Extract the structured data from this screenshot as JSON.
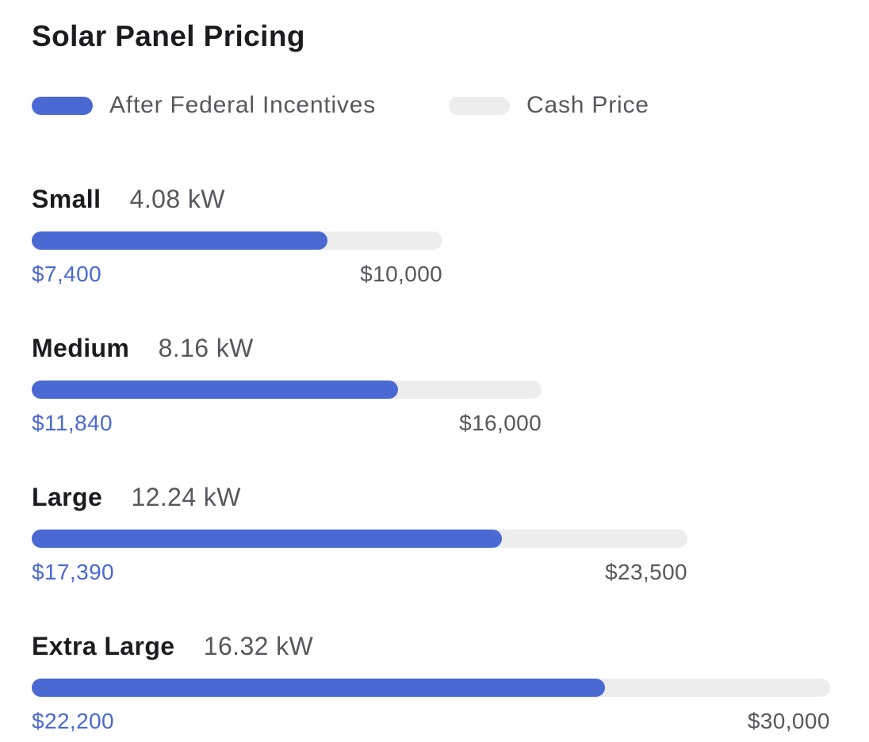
{
  "title": "Solar Panel Pricing",
  "colors": {
    "accent_blue": "#4a69d2",
    "track_gray": "#ededee",
    "heading_dark": "#1b1c20",
    "text_gray": "#56585d"
  },
  "legend": {
    "items": [
      {
        "label": "After Federal Incentives",
        "swatch": "blue"
      },
      {
        "label": "Cash Price",
        "swatch": "gray"
      }
    ]
  },
  "chart_data": {
    "type": "bar",
    "orientation": "horizontal",
    "title": "Solar Panel Pricing",
    "series": [
      "After Federal Incentives",
      "Cash Price"
    ],
    "categories": [
      "Small",
      "Medium",
      "Large",
      "Extra Large"
    ],
    "legend_position": "top",
    "grid": false,
    "rows": [
      {
        "size": "Small",
        "capacity": "4.08 kW",
        "after_incentives_value": 7400,
        "after_incentives_label": "$7,400",
        "cash_value": 10000,
        "cash_label": "$10,000",
        "track_pct": 51.0,
        "fill_pct": 72.0
      },
      {
        "size": "Medium",
        "capacity": "8.16 kW",
        "after_incentives_value": 11840,
        "after_incentives_label": "$11,840",
        "cash_value": 16000,
        "cash_label": "$16,000",
        "track_pct": 63.3,
        "fill_pct": 71.9
      },
      {
        "size": "Large",
        "capacity": "12.24 kW",
        "after_incentives_value": 17390,
        "after_incentives_label": "$17,390",
        "cash_value": 23500,
        "cash_label": "$23,500",
        "track_pct": 81.4,
        "fill_pct": 71.7
      },
      {
        "size": "Extra Large",
        "capacity": "16.32 kW",
        "after_incentives_value": 22200,
        "after_incentives_label": "$22,200",
        "cash_value": 30000,
        "cash_label": "$30,000",
        "track_pct": 99.1,
        "fill_pct": 71.8
      }
    ]
  }
}
